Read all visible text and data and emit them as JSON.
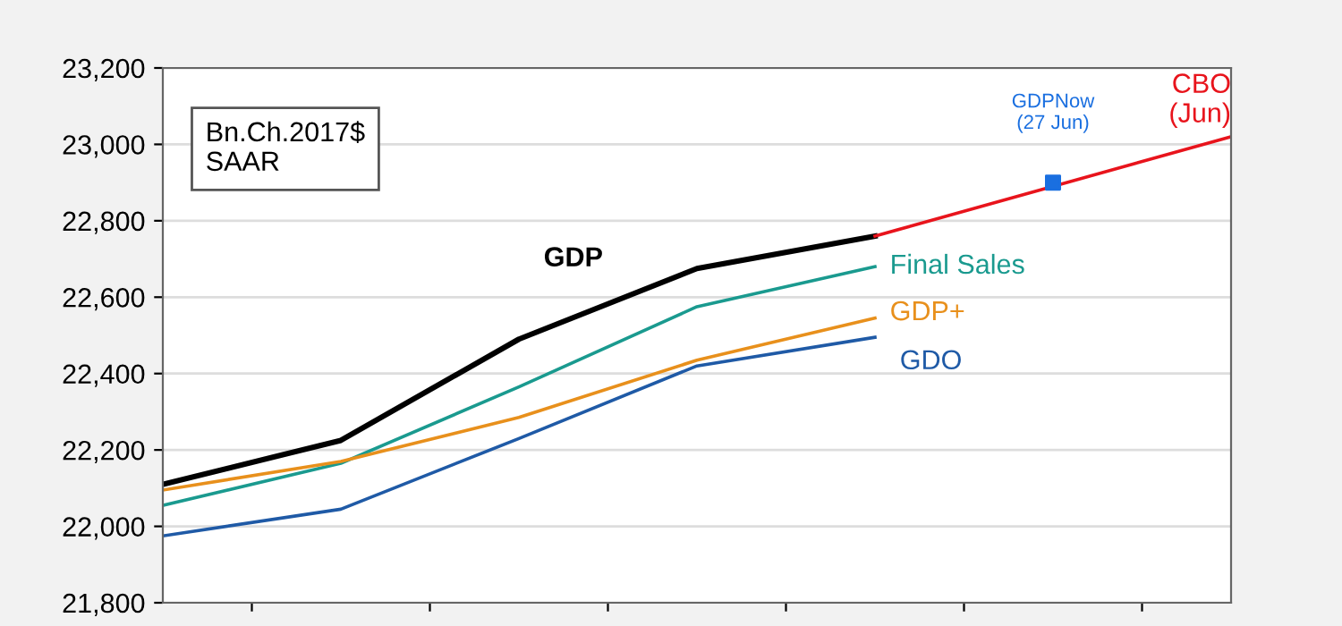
{
  "chart_data": {
    "type": "line",
    "categories": [
      null,
      null,
      null,
      null,
      null,
      null,
      null
    ],
    "series": [
      {
        "name": "GDP",
        "color": "#000000",
        "values": [
          22110,
          22225,
          22490,
          22675,
          22760,
          null,
          null
        ]
      },
      {
        "name": "Final Sales",
        "color": "#1a9a8f",
        "values": [
          22055,
          22165,
          22365,
          22575,
          22680,
          null,
          null
        ]
      },
      {
        "name": "GDP+",
        "color": "#e8901c",
        "values": [
          22095,
          22170,
          22285,
          22435,
          22545,
          null,
          null
        ]
      },
      {
        "name": "GDO",
        "color": "#1f5aa6",
        "values": [
          21975,
          22045,
          22230,
          22420,
          22495,
          null,
          null
        ]
      },
      {
        "name": "CBO\n(Jun)",
        "color": "#e8141c",
        "values": [
          null,
          null,
          null,
          null,
          22760,
          null,
          23020
        ]
      },
      {
        "name": "GDPNow\n(27 Jun)",
        "type": "scatter",
        "marker": "square",
        "color": "#1a6fe0",
        "values": [
          null,
          null,
          null,
          null,
          null,
          22900,
          null
        ]
      }
    ],
    "ylim": [
      21800,
      23200
    ],
    "yticks": [
      {
        "value": 21800,
        "label": "21,800"
      },
      {
        "value": 22000,
        "label": "22,000"
      },
      {
        "value": 22200,
        "label": "22,200"
      },
      {
        "value": 22400,
        "label": "22,400"
      },
      {
        "value": 22600,
        "label": "22,600"
      },
      {
        "value": 22800,
        "label": "22,800"
      },
      {
        "value": 23000,
        "label": "23,000"
      },
      {
        "value": 23200,
        "label": "23,200"
      }
    ],
    "grid": "y",
    "legend": false,
    "tick_labels": "y",
    "annotations": [
      "Bn.Ch.2017$\nSAAR"
    ]
  }
}
